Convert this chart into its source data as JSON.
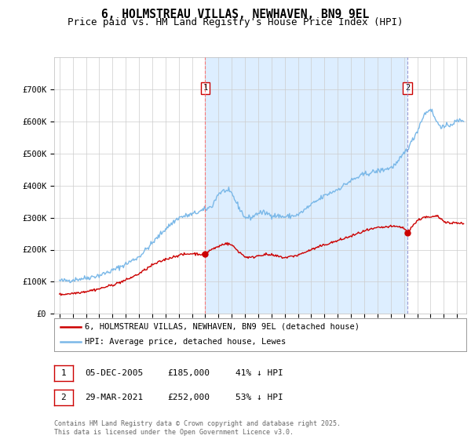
{
  "title": "6, HOLMSTREAU VILLAS, NEWHAVEN, BN9 9EL",
  "subtitle": "Price paid vs. HM Land Registry's House Price Index (HPI)",
  "ylim": [
    0,
    800000
  ],
  "yticks": [
    0,
    100000,
    200000,
    300000,
    400000,
    500000,
    600000,
    700000
  ],
  "ytick_labels": [
    "£0",
    "£100K",
    "£200K",
    "£300K",
    "£400K",
    "£500K",
    "£600K",
    "£700K"
  ],
  "hpi_color": "#7ab8e8",
  "price_color": "#cc0000",
  "shade_color": "#ddeeff",
  "marker1_date": 2006.0,
  "marker1_price": 185000,
  "marker2_date": 2021.25,
  "marker2_price": 252000,
  "legend_line1": "6, HOLMSTREAU VILLAS, NEWHAVEN, BN9 9EL (detached house)",
  "legend_line2": "HPI: Average price, detached house, Lewes",
  "table_row1": [
    "1",
    "05-DEC-2005",
    "£185,000",
    "41% ↓ HPI"
  ],
  "table_row2": [
    "2",
    "29-MAR-2021",
    "£252,000",
    "53% ↓ HPI"
  ],
  "footnote": "Contains HM Land Registry data © Crown copyright and database right 2025.\nThis data is licensed under the Open Government Licence v3.0.",
  "background_color": "#ffffff",
  "grid_color": "#cccccc",
  "title_fontsize": 10.5,
  "subtitle_fontsize": 9,
  "tick_fontsize": 7.5,
  "xlim_left": 1994.6,
  "xlim_right": 2025.7
}
